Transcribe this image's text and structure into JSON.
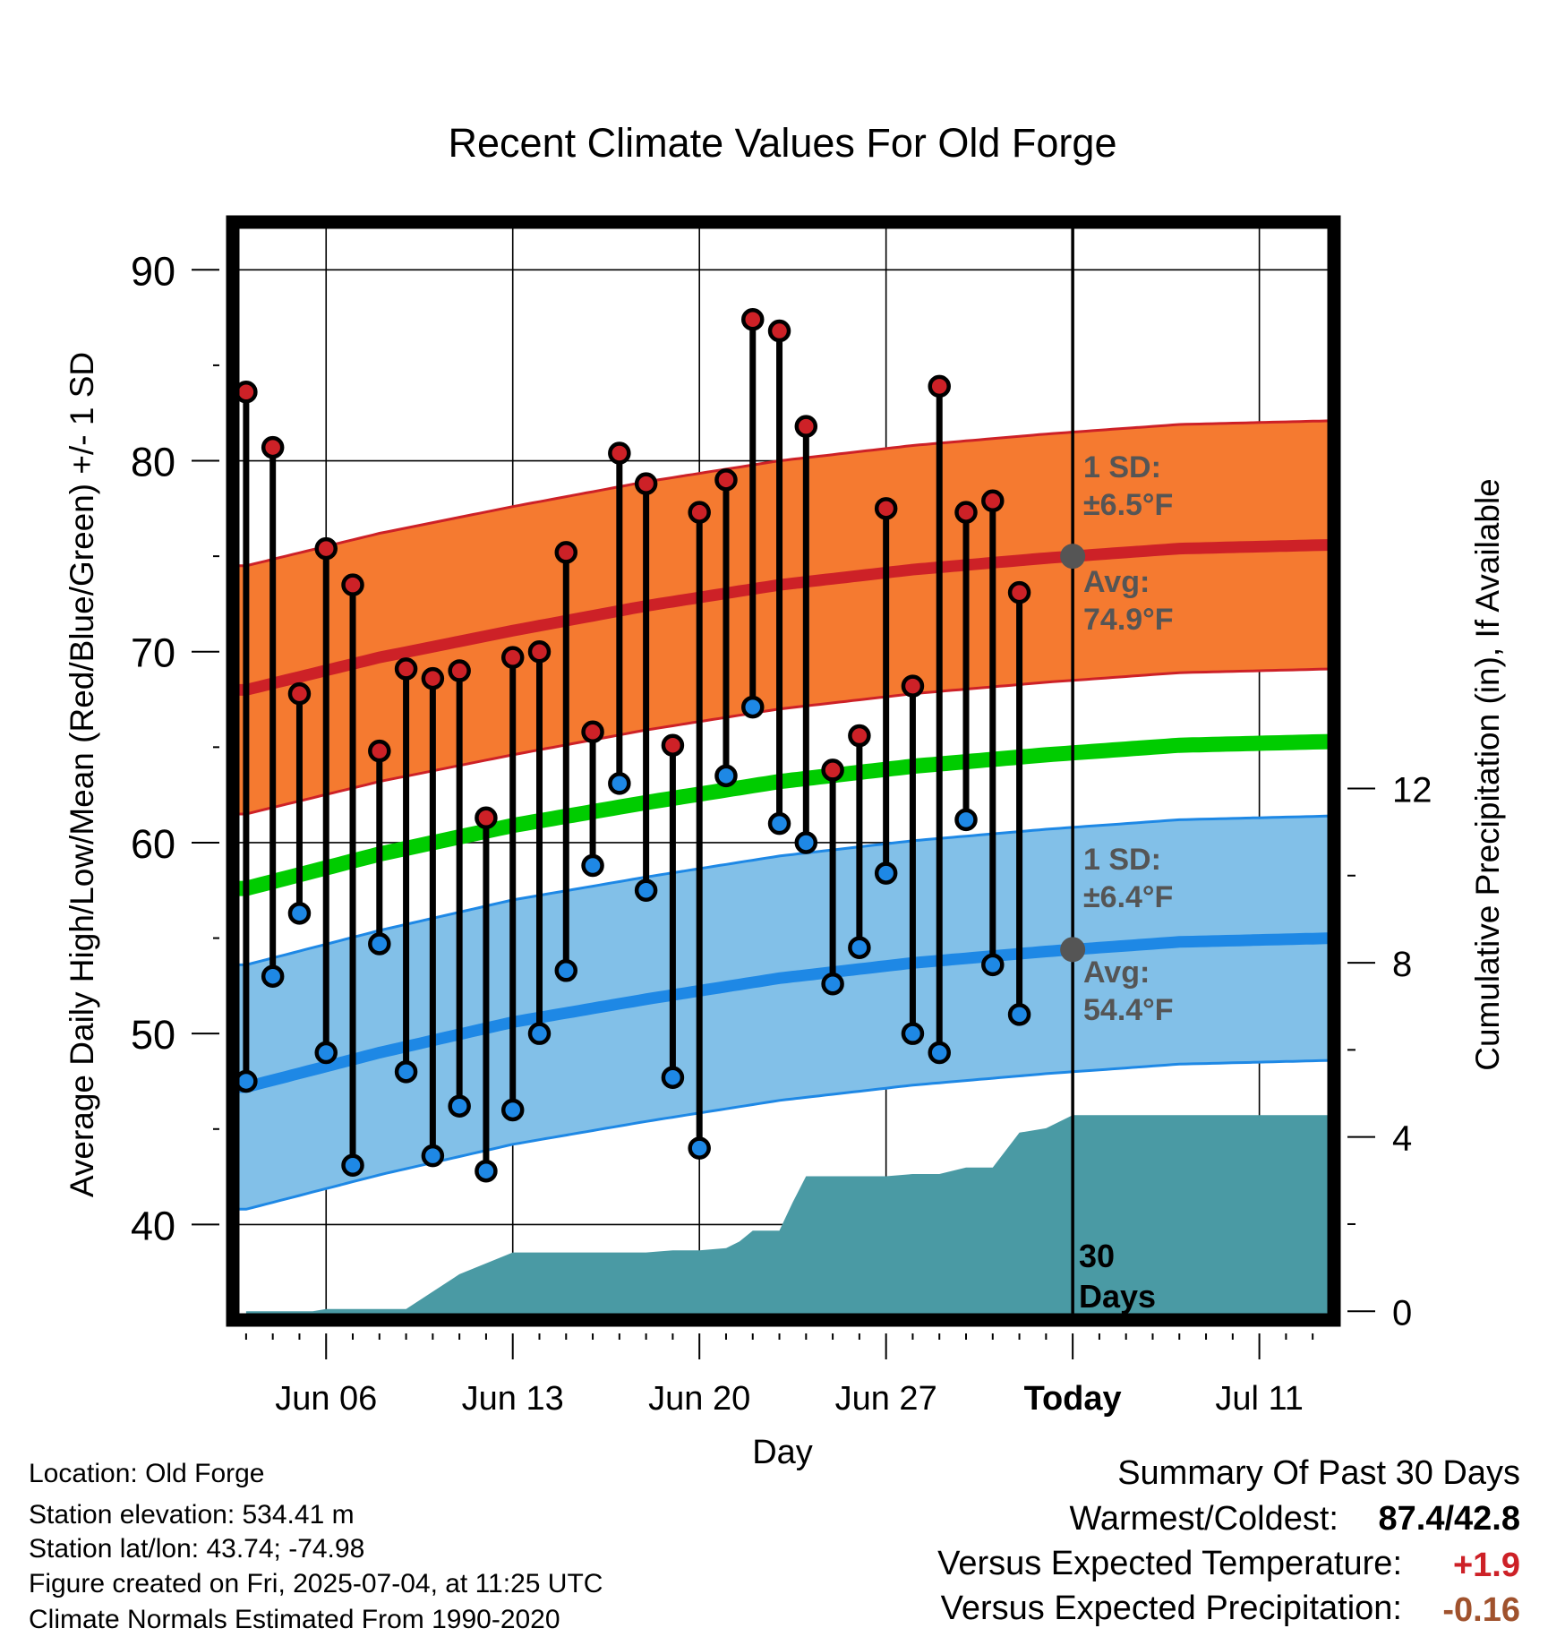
{
  "chart_data": {
    "type": "line",
    "title": "Recent Climate Values For Old Forge",
    "xlabel": "Day",
    "ylabel_left": "Average Daily High/Low/Mean (Red/Blue/Green) +/- 1 SD",
    "ylabel_right": "Cumulative Precipitation (in), If Available",
    "x_tick_labels": [
      "Jun 06",
      "Jun 13",
      "Jun 20",
      "Jun 27",
      "Today",
      "Jul 11"
    ],
    "y_left_ticks": [
      40,
      50,
      60,
      70,
      80,
      90
    ],
    "y_right_ticks": [
      0,
      4,
      8,
      12
    ],
    "x_range_days_from_jun_02": [
      0.5,
      41.8
    ],
    "y_left_range": [
      35,
      92.5
    ],
    "y_right_range": [
      -0.2,
      25
    ],
    "today_day": 32,
    "days": [
      "Jun 03",
      "Jun 04",
      "Jun 05",
      "Jun 06",
      "Jun 07",
      "Jun 08",
      "Jun 09",
      "Jun 10",
      "Jun 11",
      "Jun 12",
      "Jun 13",
      "Jun 14",
      "Jun 15",
      "Jun 16",
      "Jun 17",
      "Jun 18",
      "Jun 19",
      "Jun 20",
      "Jun 21",
      "Jun 22",
      "Jun 23",
      "Jun 24",
      "Jun 25",
      "Jun 26",
      "Jun 27",
      "Jun 28",
      "Jun 29",
      "Jun 30",
      "Jul 01",
      "Jul 02",
      "Jul 03"
    ],
    "highs": [
      83.6,
      80.7,
      67.8,
      75.4,
      73.5,
      64.8,
      69.1,
      68.6,
      69.0,
      61.3,
      69.7,
      70.0,
      75.2,
      65.8,
      80.4,
      78.8,
      65.1,
      77.3,
      79.0,
      87.4,
      86.8,
      81.8,
      63.8,
      65.6,
      77.5,
      68.2,
      83.9,
      77.3,
      77.9,
      73.1,
      null
    ],
    "lows": [
      47.5,
      53.0,
      56.3,
      49.0,
      43.1,
      54.7,
      48.0,
      43.6,
      46.2,
      42.8,
      46.0,
      50.0,
      53.3,
      58.8,
      63.1,
      57.5,
      47.7,
      44.0,
      63.5,
      67.1,
      61.0,
      60.0,
      52.6,
      54.5,
      58.4,
      50.0,
      49.0,
      61.2,
      53.6,
      51.0,
      null
    ],
    "normal_high": {
      "days": [
        1,
        6,
        11,
        16,
        21,
        26,
        31,
        36,
        41.8
      ],
      "values": [
        68.0,
        69.7,
        71.1,
        72.4,
        73.5,
        74.3,
        74.9,
        75.4,
        75.6
      ],
      "sd": 6.5
    },
    "normal_low": {
      "days": [
        1,
        6,
        11,
        16,
        21,
        26,
        31,
        36,
        41.8
      ],
      "values": [
        47.2,
        49.0,
        50.6,
        51.8,
        52.9,
        53.7,
        54.3,
        54.8,
        55.0
      ],
      "sd": 6.4
    },
    "normal_mean": {
      "days": [
        1,
        6,
        11,
        16,
        21,
        26,
        31,
        36,
        41.8
      ],
      "values": [
        57.6,
        59.4,
        60.9,
        62.1,
        63.2,
        64.0,
        64.6,
        65.1,
        65.3
      ]
    },
    "precip_cumulative": {
      "days": [
        1,
        3.5,
        4,
        6,
        7,
        9,
        11,
        13,
        16,
        17,
        18,
        19,
        19.5,
        20,
        21,
        21.5,
        22,
        25,
        26,
        27,
        28,
        29,
        30,
        31,
        32,
        41.8
      ],
      "values": [
        0,
        0,
        0.05,
        0.05,
        0.05,
        0.85,
        1.35,
        1.35,
        1.35,
        1.4,
        1.4,
        1.45,
        1.6,
        1.85,
        1.85,
        2.5,
        3.1,
        3.1,
        3.15,
        3.15,
        3.3,
        3.3,
        4.1,
        4.2,
        4.5,
        4.5
      ]
    },
    "annotations": {
      "high_sd": "1 SD:",
      "high_sd_value": "±6.5°F",
      "high_avg": "Avg:",
      "high_avg_value": "74.9°F",
      "low_sd": "1 SD:",
      "low_sd_value": "±6.4°F",
      "low_avg": "Avg:",
      "low_avg_value": "54.4°F",
      "window_count": "30",
      "window_unit": "Days"
    },
    "grid": true,
    "colors": {
      "high_band": "#f57a30",
      "high_line": "#cd2127",
      "low_band": "#82c0e8",
      "low_line": "#1e88e5",
      "mean_line": "#00cc00",
      "precip": "#4a9aa4",
      "high_marker": "#cd2127",
      "low_marker": "#1e88e5",
      "avg_marker": "#555555"
    }
  },
  "footer": {
    "location": "Location: Old Forge",
    "elevation": "Station elevation: 534.41 m",
    "latlon": "Station lat/lon: 43.74; -74.98",
    "created": "Figure created on Fri, 2025-07-04, at 11:25 UTC",
    "normals": "Climate Normals Estimated From 1990-2020"
  },
  "summary": {
    "heading": "Summary Of Past 30 Days",
    "warm_cold_label": "Warmest/Coldest:",
    "warm_cold_value": "87.4/42.8",
    "temp_label": "Versus Expected Temperature:",
    "temp_value": "+1.9",
    "temp_color": "#cd2127",
    "precip_label": "Versus Expected Precipitation:",
    "precip_value": "-0.16",
    "precip_color": "#a0522d"
  }
}
